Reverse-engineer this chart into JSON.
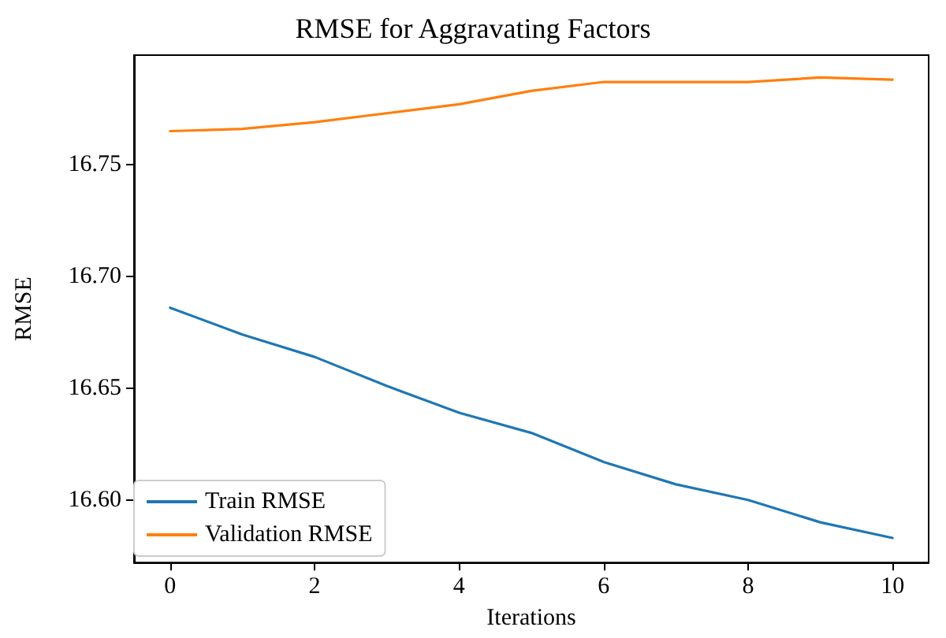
{
  "chart_data": {
    "type": "line",
    "title": "RMSE for Aggravating Factors",
    "xlabel": "Iterations",
    "ylabel": "RMSE",
    "x": [
      0,
      1,
      2,
      3,
      4,
      5,
      6,
      7,
      8,
      9,
      10
    ],
    "series": [
      {
        "name": "Train RMSE",
        "color": "#1f77b4",
        "values": [
          16.686,
          16.674,
          16.664,
          16.651,
          16.639,
          16.63,
          16.617,
          16.607,
          16.6,
          16.59,
          16.583
        ]
      },
      {
        "name": "Validation RMSE",
        "color": "#ff7f0e",
        "values": [
          16.765,
          16.766,
          16.769,
          16.773,
          16.777,
          16.783,
          16.787,
          16.787,
          16.787,
          16.789,
          16.788
        ]
      }
    ],
    "xlim": [
      -0.5,
      10.5
    ],
    "xticks": [
      0,
      2,
      4,
      6,
      8,
      10
    ],
    "ylim": [
      16.572,
      16.799
    ],
    "yticks": [
      {
        "value": 16.6,
        "label": "16.60"
      },
      {
        "value": 16.65,
        "label": "16.65"
      },
      {
        "value": 16.7,
        "label": "16.70"
      },
      {
        "value": 16.75,
        "label": "16.75"
      }
    ],
    "grid": false,
    "legend": "bottom left",
    "marker": "none",
    "line_style": "solid"
  }
}
